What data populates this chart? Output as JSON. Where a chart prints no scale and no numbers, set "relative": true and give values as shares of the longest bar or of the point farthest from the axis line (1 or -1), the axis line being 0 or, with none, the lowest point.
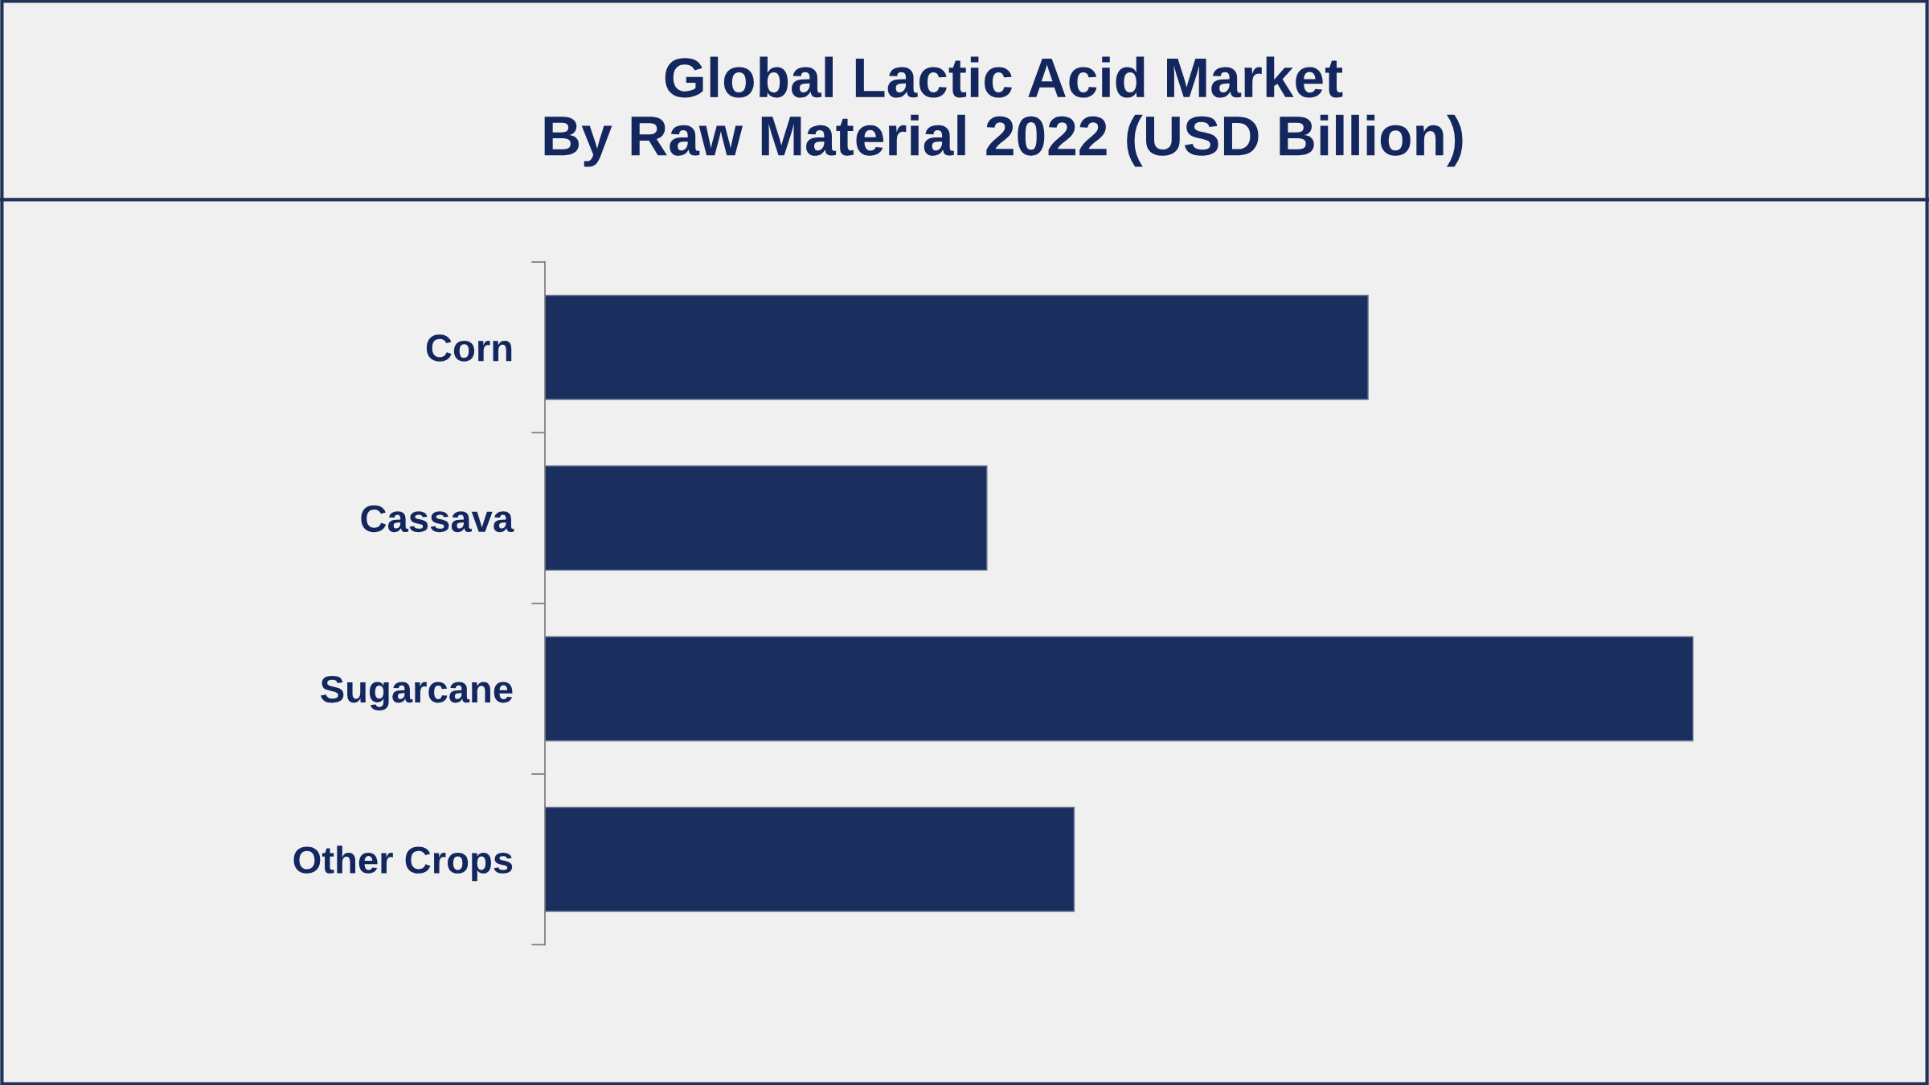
{
  "chart_data": {
    "type": "bar",
    "orientation": "horizontal",
    "relative": true,
    "title": "Global Lactic Acid Market\nBy Raw Material 2022 (USD Billion)",
    "categories": [
      "Corn",
      "Cassava",
      "Sugarcane",
      "Other Crops"
    ],
    "values": [
      0.717,
      0.385,
      1,
      0.461
    ],
    "color": "#1b2f5e",
    "grid": false,
    "legend": false
  }
}
